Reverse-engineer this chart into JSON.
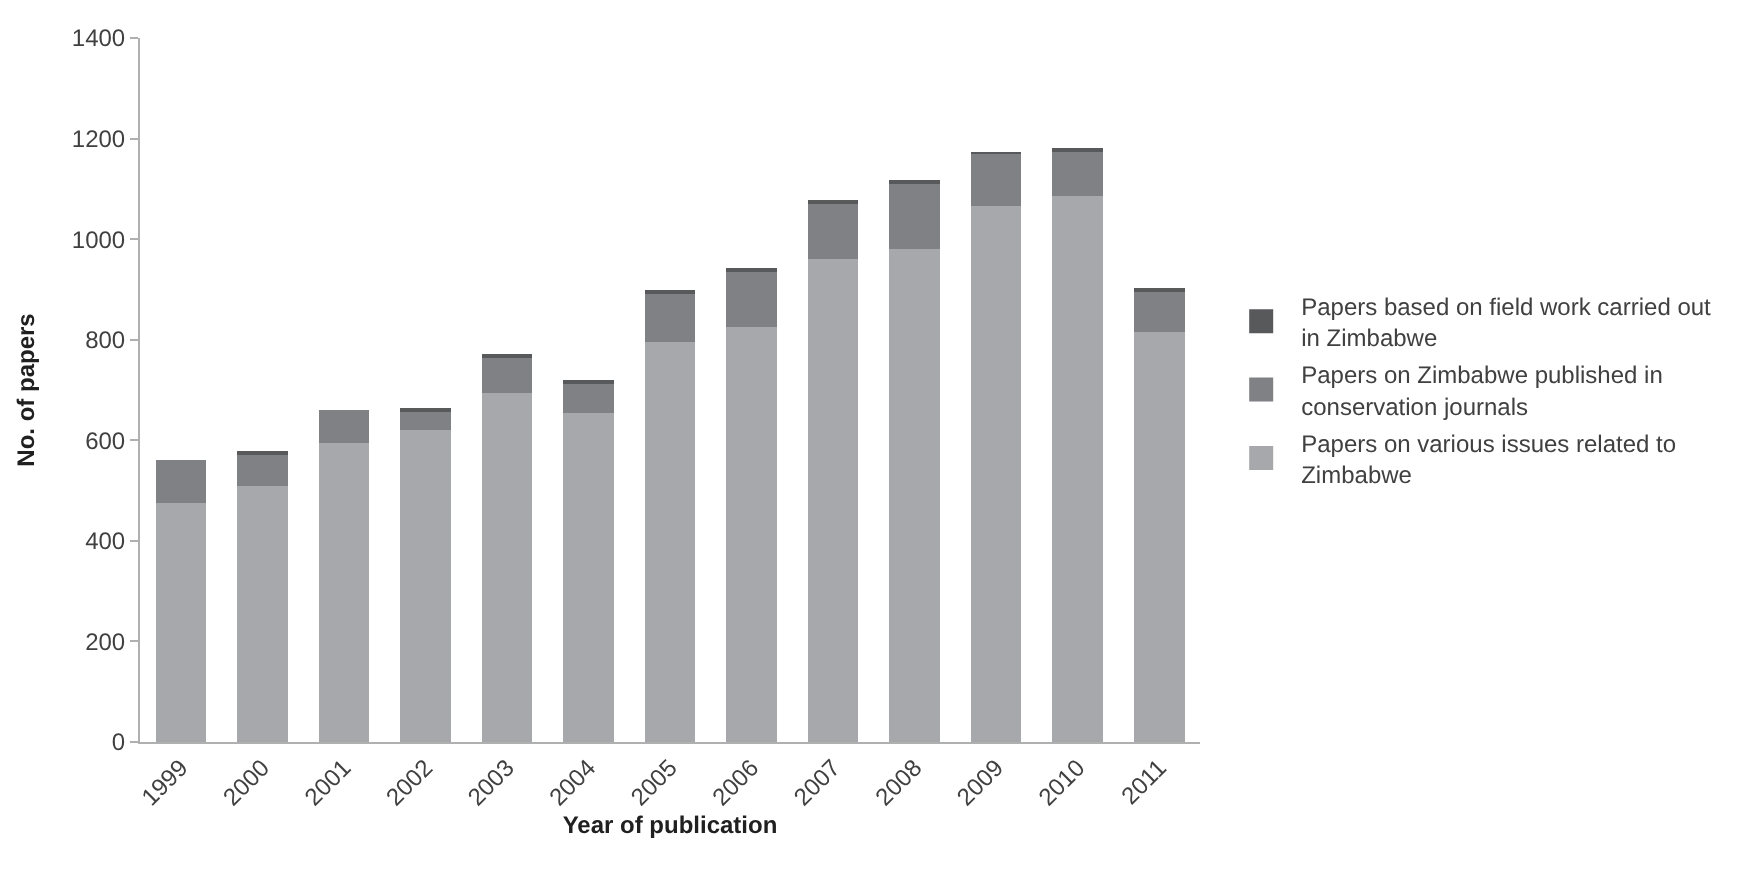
{
  "chart_data": {
    "type": "bar",
    "stacked": true,
    "xlabel": "Year of publication",
    "ylabel": "No. of papers",
    "categories": [
      "1999",
      "2000",
      "2001",
      "2002",
      "2003",
      "2004",
      "2005",
      "2006",
      "2007",
      "2008",
      "2009",
      "2010",
      "2011"
    ],
    "series": [
      {
        "name": "Papers on various issues related to Zimbabwe",
        "color": "#a6a8ab",
        "values": [
          475,
          510,
          595,
          620,
          695,
          655,
          795,
          825,
          960,
          980,
          1065,
          1085,
          815
        ]
      },
      {
        "name": "Papers on Zimbabwe published in conservation journals",
        "color": "#808184",
        "values": [
          85,
          60,
          65,
          37,
          70,
          60,
          97,
          112,
          113,
          133,
          105,
          92,
          82
        ]
      },
      {
        "name": "Papers based on field work carried out in Zimbabwe",
        "color": "#58595b",
        "values": [
          0,
          8,
          0,
          8,
          3,
          3,
          3,
          3,
          5,
          5,
          3,
          3,
          3
        ]
      }
    ],
    "ylim": [
      0,
      1400
    ],
    "yticks": [
      0,
      200,
      400,
      600,
      800,
      1000,
      1200,
      1400
    ],
    "legend": "right"
  }
}
